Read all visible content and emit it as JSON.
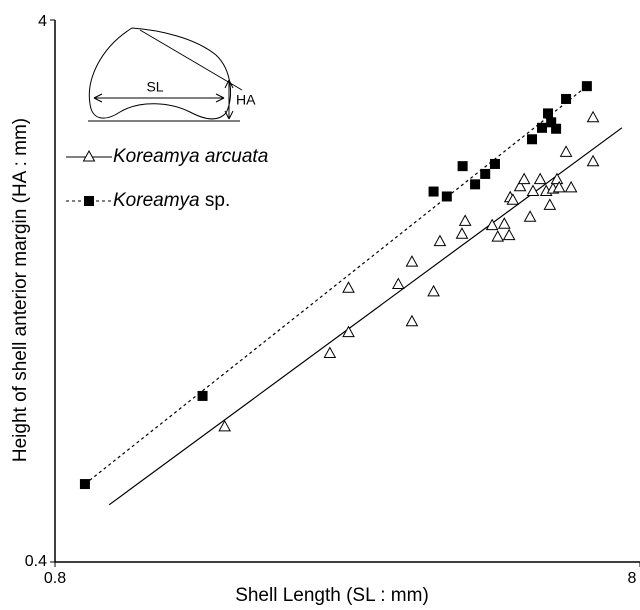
{
  "chart_data": {
    "type": "scatter",
    "xlabel": "Shell Length (SL : mm)",
    "ylabel": "Height of shell anterior margin (HA : mm)",
    "xscale": "log",
    "yscale": "log",
    "xlim": [
      0.8,
      8
    ],
    "ylim": [
      0.4,
      4
    ],
    "xticks": [
      0.8,
      8
    ],
    "yticks": [
      0.4,
      4
    ],
    "inset_labels": [
      "SL",
      "HA"
    ],
    "series": [
      {
        "name": "Koreamya arcuata",
        "marker": "triangle",
        "color": "#000000",
        "line": "solid",
        "x": [
          1.56,
          2.36,
          2.54,
          2.54,
          3.09,
          3.26,
          3.26,
          3.55,
          3.64,
          3.97,
          4.02,
          4.47,
          4.57,
          4.69,
          4.78,
          4.8,
          4.85,
          4.99,
          5.07,
          5.19,
          5.25,
          5.4,
          5.53,
          5.61,
          5.68,
          5.77,
          5.82,
          5.98,
          6.1,
          6.65,
          6.65
        ],
        "values": [
          0.71,
          0.97,
          1.06,
          1.28,
          1.3,
          1.43,
          1.11,
          1.26,
          1.56,
          1.61,
          1.7,
          1.67,
          1.59,
          1.68,
          1.6,
          1.88,
          1.86,
          1.97,
          2.03,
          1.73,
          1.93,
          2.03,
          1.93,
          1.82,
          1.95,
          2.03,
          1.96,
          2.28,
          1.96,
          2.64,
          2.19
        ],
        "trend": {
          "x": [
            0.99,
            7.45
          ],
          "values": [
            0.51,
            2.53
          ]
        }
      },
      {
        "name": "Koreamya sp.",
        "marker": "square",
        "color": "#000000",
        "line": "dashed",
        "x": [
          0.9,
          1.43,
          3.55,
          3.74,
          3.98,
          4.18,
          4.35,
          4.52,
          5.23,
          5.44,
          5.57,
          5.64,
          5.75,
          5.98,
          6.49
        ],
        "values": [
          0.557,
          0.81,
          1.93,
          1.89,
          2.15,
          1.99,
          2.08,
          2.17,
          2.41,
          2.53,
          2.69,
          2.59,
          2.52,
          2.86,
          3.02
        ],
        "trend": {
          "x": [
            0.9,
            6.49
          ],
          "values": [
            0.557,
            3.02
          ]
        }
      }
    ]
  }
}
